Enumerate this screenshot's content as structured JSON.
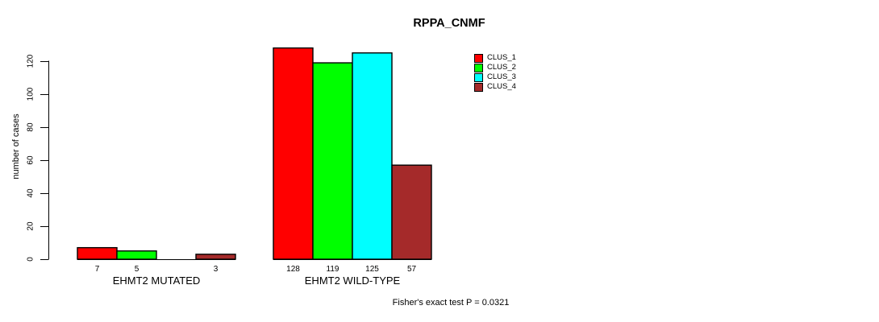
{
  "chart_data": {
    "type": "bar",
    "title": "RPPA_CNMF",
    "ylabel": "number of cases",
    "xlabel": "",
    "ylim": [
      0,
      120
    ],
    "yticks": [
      0,
      20,
      40,
      60,
      80,
      100,
      120
    ],
    "grid": false,
    "categories": [
      "EHMT2 MUTATED",
      "EHMT2 WILD-TYPE"
    ],
    "series": [
      {
        "name": "CLUS_1",
        "color": "#FF0000",
        "values": [
          7,
          128
        ]
      },
      {
        "name": "CLUS_2",
        "color": "#00FF00",
        "values": [
          5,
          119
        ]
      },
      {
        "name": "CLUS_3",
        "color": "#00FFFF",
        "values": [
          0,
          125
        ]
      },
      {
        "name": "CLUS_4",
        "color": "#A52A2A",
        "values": [
          3,
          57
        ]
      }
    ],
    "bar_labels": [
      [
        "7",
        "5",
        "",
        "3"
      ],
      [
        "128",
        "119",
        "125",
        "57"
      ]
    ],
    "legend": {
      "position": "top-right",
      "items": [
        "CLUS_1",
        "CLUS_2",
        "CLUS_3",
        "CLUS_4"
      ]
    },
    "annotation": "Fisher's exact test P = 0.0321"
  }
}
